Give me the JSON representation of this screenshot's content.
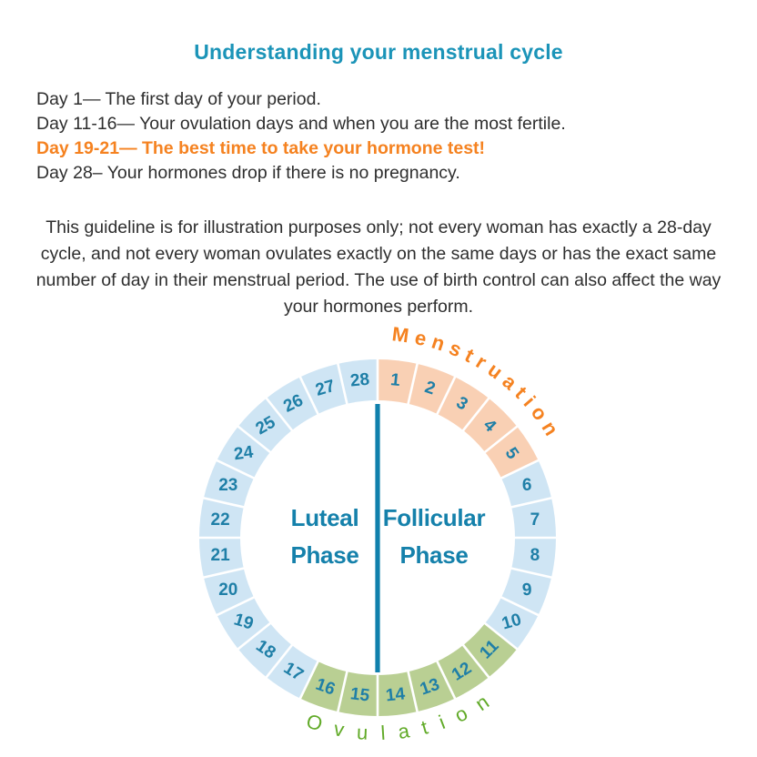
{
  "title": "Understanding your menstrual cycle",
  "colors": {
    "title": "#1b94b8",
    "highlight": "#f58220",
    "body_text": "#2e2e2e"
  },
  "info_lines": [
    {
      "text": "Day 1— The first day of your period.",
      "highlight": false
    },
    {
      "text": "Day 11-16— Your ovulation days and when you are the most fertile.",
      "highlight": false
    },
    {
      "text": "Day 19-21— The best time to take your hormone test!",
      "highlight": true
    },
    {
      "text": "Day 28– Your hormones drop if there is no pregnancy.",
      "highlight": false
    }
  ],
  "disclaimer": "This guideline is for illustration purposes only; not every woman has exactly a 28-day cycle, and not every woman ovulates exactly on the same days or has the exact same number of day in their menstrual period. The use of birth control can also affect the way your hormones perform.",
  "wheel": {
    "total_days": 28,
    "segment_groups": [
      {
        "phase": "Menstruation",
        "from": 1,
        "to": 5,
        "color": "#f9d0b4"
      },
      {
        "phase": "Follicular",
        "from": 6,
        "to": 10,
        "color": "#cfe5f4"
      },
      {
        "phase": "Ovulation",
        "from": 11,
        "to": 16,
        "color": "#b9cf93"
      },
      {
        "phase": "Luteal",
        "from": 17,
        "to": 28,
        "color": "#cfe5f4"
      }
    ],
    "day_number_color": "#1f7fa7",
    "divider_color": "#1080ac",
    "center_label_color": "#1581ab",
    "center_left_label": {
      "line1": "Luteal",
      "line2": "Phase"
    },
    "center_right_label": {
      "line1": "Follicular",
      "line2": "Phase"
    },
    "curved_top_label": {
      "text": "Menstruation",
      "color": "#f58220"
    },
    "curved_bottom_label": {
      "text": "Ovulation",
      "color": "#61aa28"
    }
  }
}
